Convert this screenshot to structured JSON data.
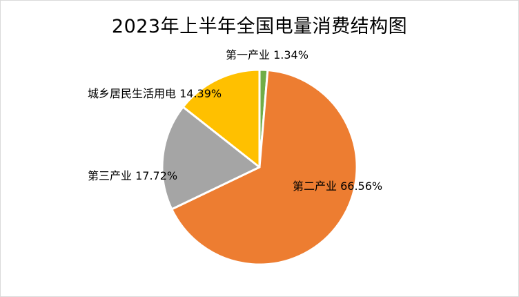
{
  "chart_data": {
    "type": "pie",
    "title": "2023年上半年全国电量消费结构图",
    "start_angle_deg": 0,
    "direction": "clockwise",
    "slices": [
      {
        "label": "第一产业 1.34%",
        "name": "第一产业",
        "value": 1.34,
        "color": "#70ad47"
      },
      {
        "label": "第二产业 66.56%",
        "name": "第二产业",
        "value": 66.56,
        "color": "#ed7d31"
      },
      {
        "label": "第三产业 17.72%",
        "name": "第三产业",
        "value": 17.72,
        "color": "#a5a5a5"
      },
      {
        "label": "城乡居民生活用电 14.39%",
        "name": "城乡居民生活用电",
        "value": 14.39,
        "color": "#ffc000"
      }
    ]
  }
}
